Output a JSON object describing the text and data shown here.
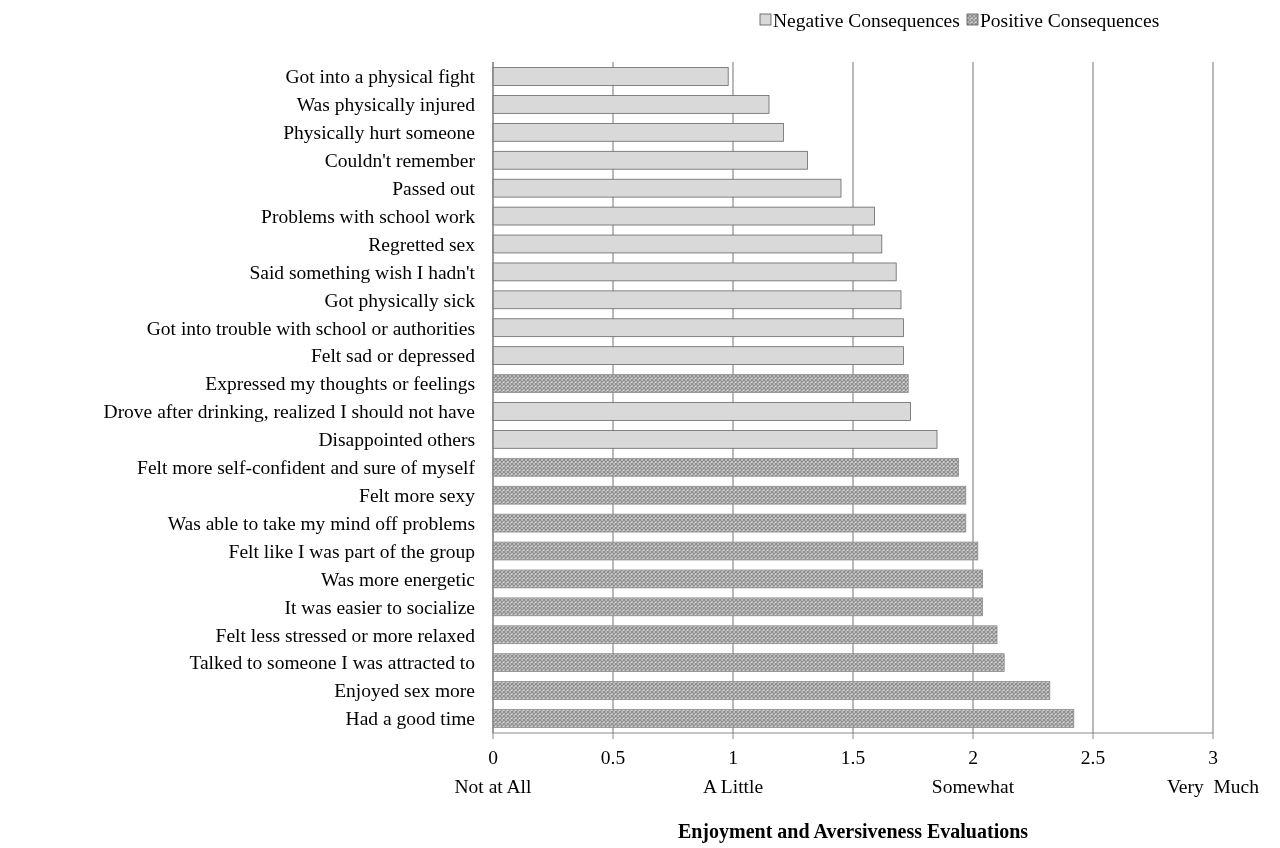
{
  "chart_data": {
    "type": "bar",
    "orientation": "horizontal",
    "xlabel": "Enjoyment and Aversiveness Evaluations",
    "categories": [
      "Got into a physical fight",
      "Was physically injured",
      "Physically hurt someone",
      "Couldn't remember",
      "Passed out",
      "Problems with school work",
      "Regretted sex",
      "Said something wish I hadn't",
      "Got physically sick",
      "Got into trouble with school or authorities",
      "Felt sad or depressed",
      "Expressed my thoughts or feelings",
      "Drove after drinking, realized I should not have",
      "Disappointed others",
      "Felt more self-confident and sure of myself",
      "Felt more sexy",
      "Was able to take my mind off problems",
      "Felt like I was part of the group",
      "Was more energetic",
      "It was easier to socialize",
      "Felt less stressed or more relaxed",
      "Talked to someone I was attracted to",
      "Enjoyed sex more",
      "Had a good time"
    ],
    "series": [
      {
        "name": "Negative Consequences",
        "color": "#d9d9d9",
        "values": [
          0.98,
          1.15,
          1.21,
          1.31,
          1.45,
          1.59,
          1.62,
          1.68,
          1.7,
          1.71,
          1.71,
          null,
          1.74,
          1.85,
          null,
          null,
          null,
          null,
          null,
          null,
          null,
          null,
          null,
          null
        ]
      },
      {
        "name": "Positive Consequences",
        "color": "#8c8c8c",
        "values": [
          null,
          null,
          null,
          null,
          null,
          null,
          null,
          null,
          null,
          null,
          null,
          1.73,
          null,
          null,
          1.94,
          1.97,
          1.97,
          2.02,
          2.04,
          2.04,
          2.1,
          2.13,
          2.32,
          2.42
        ]
      }
    ],
    "xlim": [
      0,
      3
    ],
    "xticks": [
      {
        "value": 0,
        "label": "0\nNot at All"
      },
      0.5,
      {
        "value": 1,
        "label": "1\nA Little"
      },
      1.5,
      {
        "value": 2,
        "label": "2\nSomewhat"
      },
      2.5,
      {
        "value": 3,
        "label": "3\nVery  Much"
      }
    ],
    "grid": "x",
    "legend": "top"
  }
}
